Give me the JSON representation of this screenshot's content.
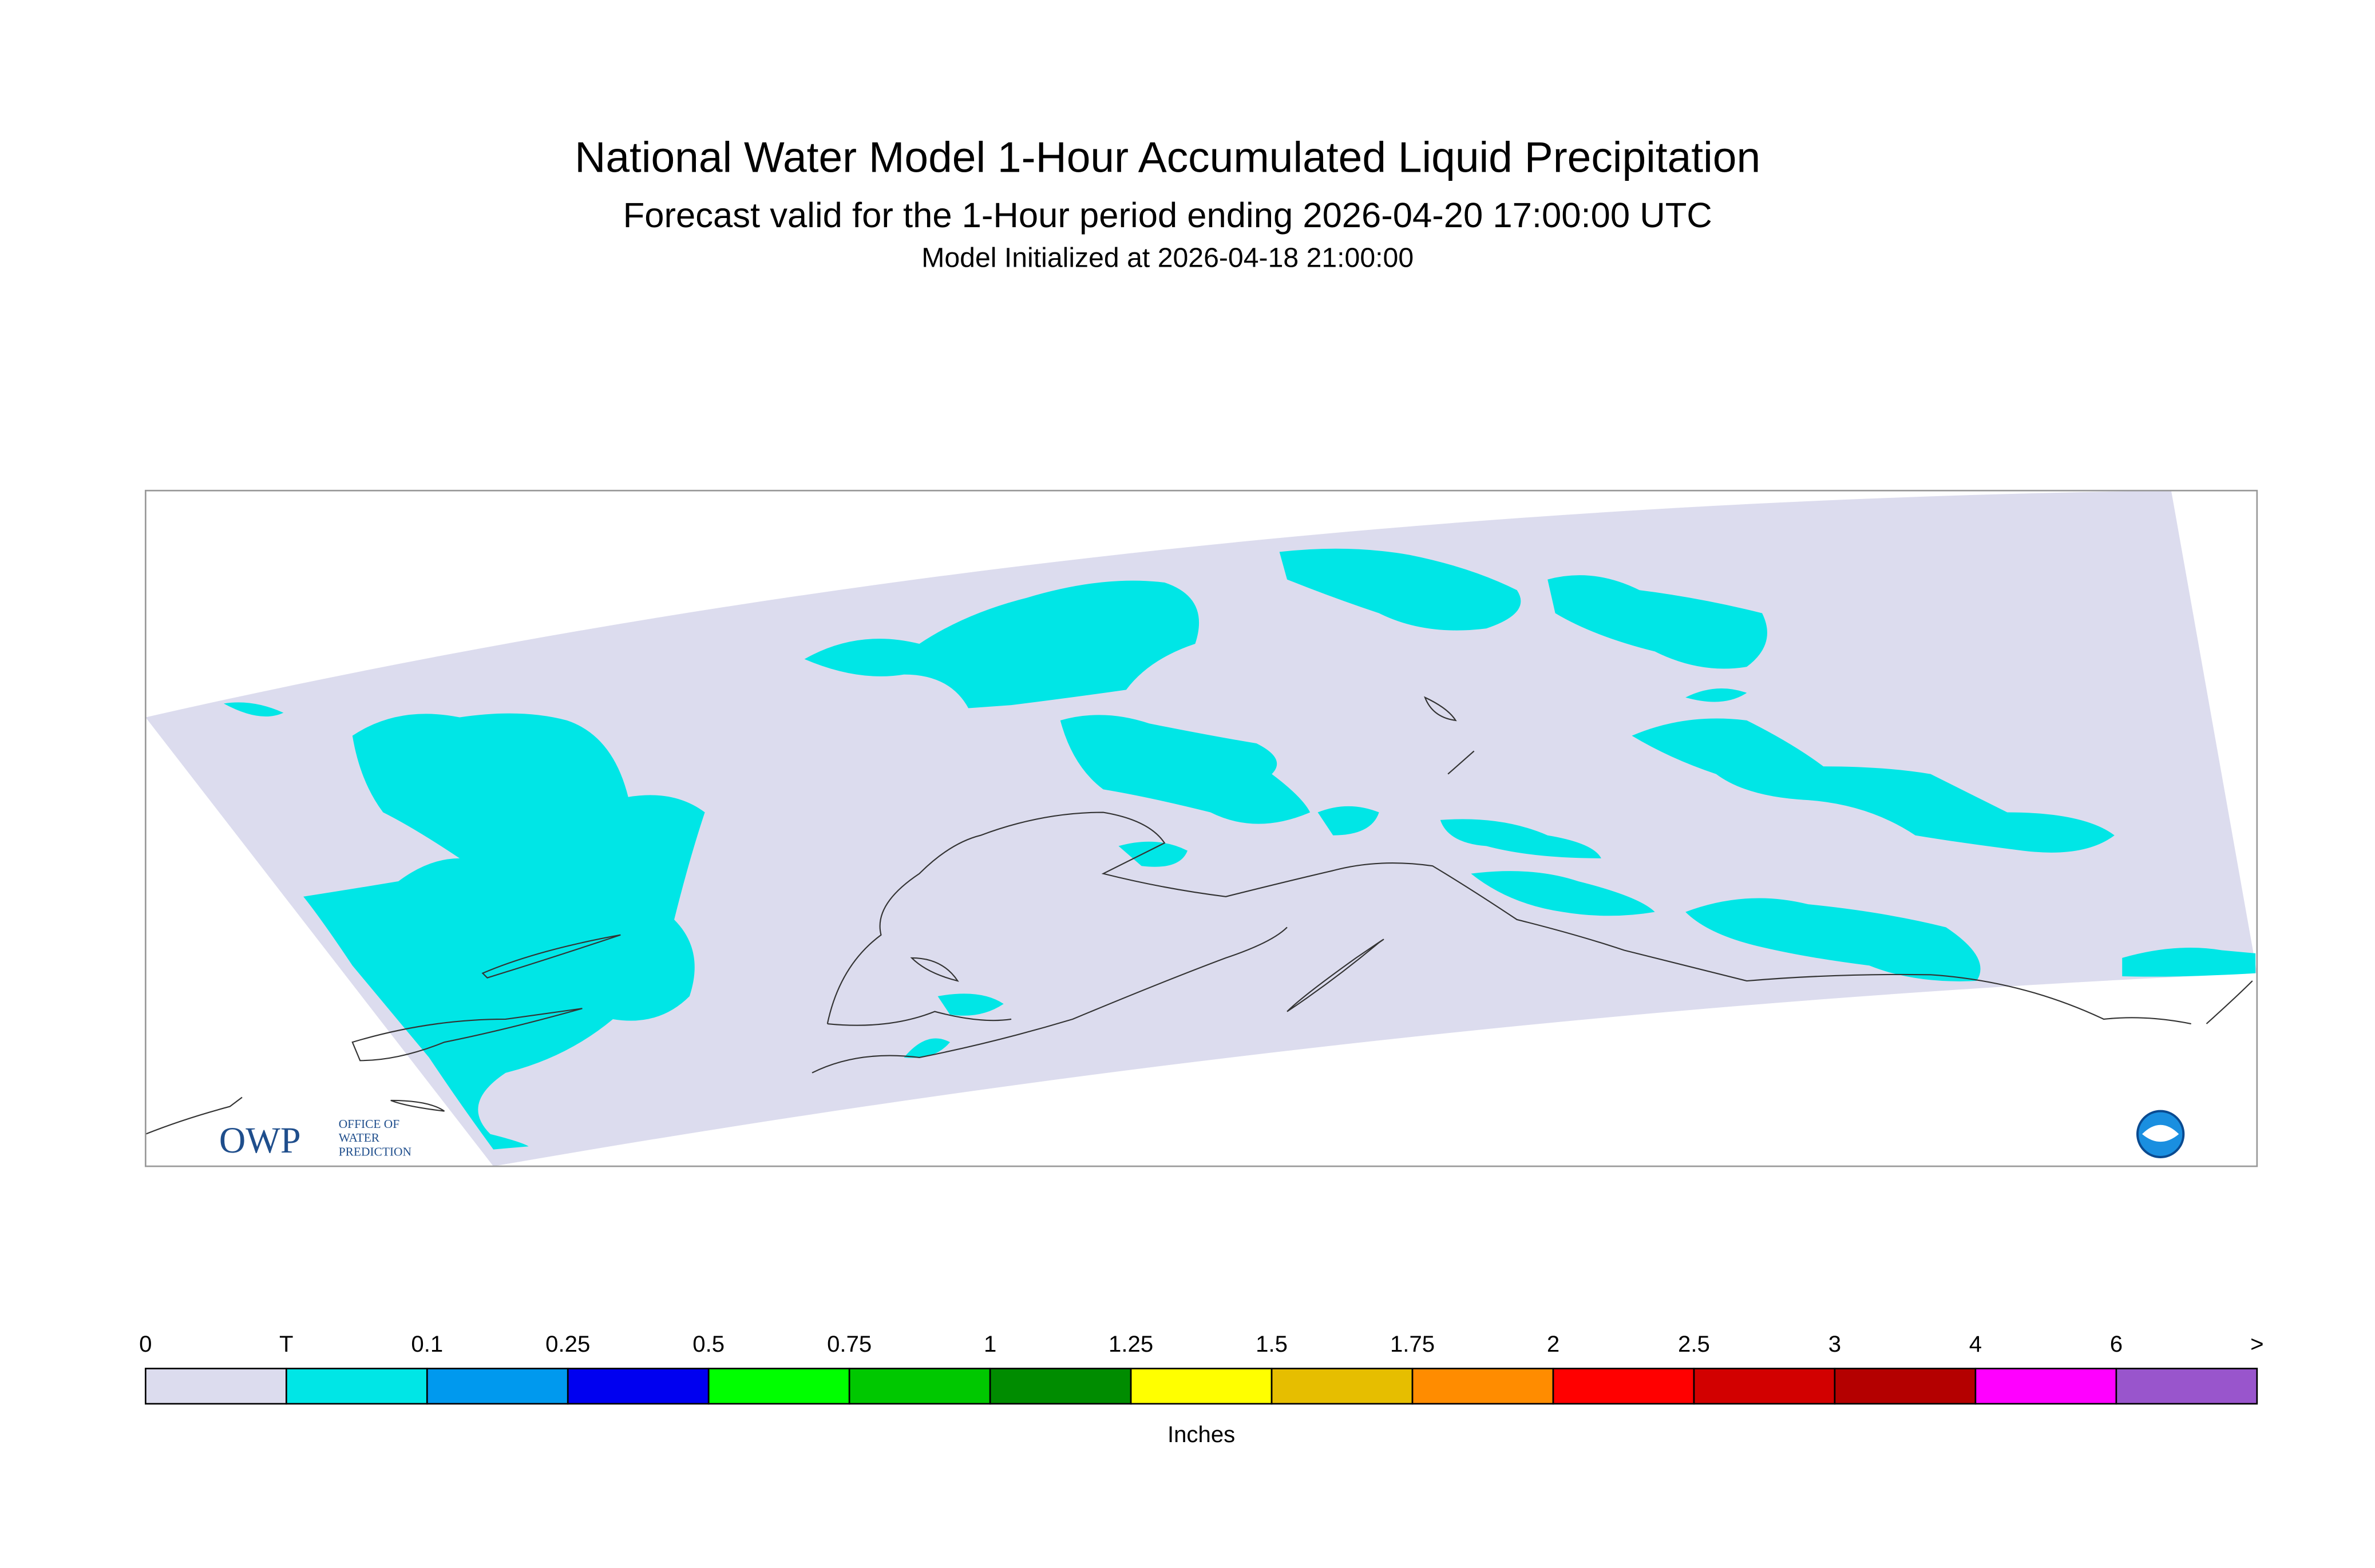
{
  "header": {
    "title": "National Water Model 1-Hour Accumulated Liquid Precipitation",
    "subtitle": "Forecast valid for the 1-Hour period ending 2026-04-20 17:00:00 UTC",
    "initialized": "Model Initialized at 2026-04-18 21:00:00"
  },
  "logo": {
    "mark": "OWP",
    "lines": [
      "OFFICE OF",
      "WATER",
      "PREDICTION"
    ]
  },
  "colorbar": {
    "labels": [
      "0",
      "T",
      "0.1",
      "0.25",
      "0.5",
      "0.75",
      "1",
      "1.25",
      "1.5",
      "1.75",
      "2",
      "2.5",
      "3",
      "4",
      "6",
      ">"
    ],
    "colors": [
      "#dcdcee",
      "#00e6e6",
      "#0099ee",
      "#0000f0",
      "#00ff00",
      "#00c800",
      "#008c00",
      "#ffff00",
      "#e6be00",
      "#ff8c00",
      "#ff0000",
      "#d20000",
      "#b40000",
      "#ff00ff",
      "#9955cc"
    ],
    "unit": "Inches"
  }
}
